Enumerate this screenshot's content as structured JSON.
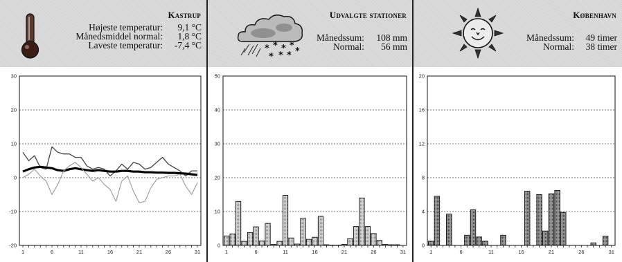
{
  "panels": [
    {
      "title": "Kastrup",
      "stats": [
        {
          "label": "Højeste temperatur:",
          "value": "9,1 °C"
        },
        {
          "label": "Månedsmiddel normal:",
          "value": "1,8 °C"
        },
        {
          "label": "Laveste temperatur:",
          "value": "-7,4 °C"
        }
      ],
      "icon": "thermometer-icon"
    },
    {
      "title": "Udvalgte stationer",
      "stats": [
        {
          "label": "Månedssum:",
          "value": "108 mm"
        },
        {
          "label": "Normal:",
          "value": "56 mm"
        }
      ],
      "icon": "rain-snow-cloud-icon"
    },
    {
      "title": "København",
      "stats": [
        {
          "label": "Månedssum:",
          "value": "49 timer"
        },
        {
          "label": "Normal:",
          "value": "38 timer"
        }
      ],
      "icon": "smiling-sun-icon"
    }
  ],
  "chart_data": [
    {
      "type": "line",
      "x": [
        1,
        2,
        3,
        4,
        5,
        6,
        7,
        8,
        9,
        10,
        11,
        12,
        13,
        14,
        15,
        16,
        17,
        18,
        19,
        20,
        21,
        22,
        23,
        24,
        25,
        26,
        27,
        28,
        29,
        30,
        31
      ],
      "xticks": [
        "1",
        "6",
        "11",
        "16",
        "21",
        "26",
        "31"
      ],
      "yticks": [
        "30",
        "20",
        "10",
        "0",
        "-10",
        "-20"
      ],
      "ylim": [
        -20,
        30
      ],
      "grid": "horizontal dashed",
      "series": [
        {
          "style": "max",
          "values": [
            7.5,
            5.0,
            6.5,
            3.0,
            2.5,
            9.1,
            7.5,
            7.0,
            7.0,
            6.0,
            6.0,
            3.5,
            2.5,
            3.0,
            2.5,
            0.5,
            2.0,
            4.0,
            2.5,
            4.5,
            4.0,
            2.5,
            3.0,
            4.5,
            6.0,
            4.0,
            3.0,
            2.0,
            0.5,
            2.0,
            2.0
          ]
        },
        {
          "style": "mean",
          "values": [
            1.8,
            2.5,
            3.0,
            3.2,
            3.0,
            2.8,
            2.2,
            2.0,
            2.5,
            2.8,
            2.5,
            2.2,
            2.0,
            2.2,
            2.0,
            1.8,
            1.8,
            2.0,
            2.0,
            1.8,
            1.8,
            1.6,
            1.6,
            1.5,
            1.5,
            1.4,
            1.4,
            1.3,
            1.2,
            1.0,
            0.8
          ]
        },
        {
          "style": "min",
          "values": [
            0.0,
            1.0,
            2.5,
            0.5,
            -1.0,
            -5.0,
            -2.0,
            2.0,
            3.5,
            4.5,
            3.0,
            1.0,
            -1.0,
            0.0,
            -2.0,
            -3.5,
            -7.0,
            -1.0,
            0.5,
            -4.0,
            -7.4,
            -7.0,
            -3.0,
            -0.5,
            0.0,
            0.5,
            0.5,
            1.0,
            -2.5,
            -5.0,
            -1.5
          ]
        }
      ]
    },
    {
      "type": "bar",
      "categories": [
        1,
        2,
        3,
        4,
        5,
        6,
        7,
        8,
        9,
        10,
        11,
        12,
        13,
        14,
        15,
        16,
        17,
        18,
        19,
        20,
        21,
        22,
        23,
        24,
        25,
        26,
        27,
        28,
        29,
        30,
        31
      ],
      "xticks": [
        "1",
        "6",
        "11",
        "16",
        "21",
        "26",
        "31"
      ],
      "yticks": [
        "50",
        "40",
        "30",
        "20",
        "10",
        "0"
      ],
      "ylim": [
        0,
        50
      ],
      "grid": "horizontal dashed",
      "values": [
        2.8,
        3.4,
        13.0,
        1.2,
        3.8,
        5.5,
        1.3,
        6.5,
        0.3,
        1.2,
        14.8,
        2.2,
        0.4,
        8.0,
        1.8,
        2.4,
        8.6,
        0.2,
        0.1,
        0.1,
        0.3,
        2.0,
        5.6,
        14.0,
        5.6,
        3.5,
        1.5,
        0.3,
        0.2,
        0.2,
        0.0
      ]
    },
    {
      "type": "bar",
      "categories": [
        1,
        2,
        3,
        4,
        5,
        6,
        7,
        8,
        9,
        10,
        11,
        12,
        13,
        14,
        15,
        16,
        17,
        18,
        19,
        20,
        21,
        22,
        23,
        24,
        25,
        26,
        27,
        28,
        29,
        30,
        31
      ],
      "xticks": [
        "1",
        "6",
        "11",
        "16",
        "21",
        "26",
        "31"
      ],
      "yticks": [
        "20",
        "16",
        "12",
        "8",
        "4",
        "0"
      ],
      "ylim": [
        0,
        20
      ],
      "grid": "horizontal dashed",
      "values": [
        0.5,
        5.8,
        0.0,
        3.7,
        0.0,
        0.0,
        1.2,
        4.2,
        1.0,
        0.5,
        0.0,
        0.0,
        1.2,
        0.0,
        0.0,
        0.0,
        6.4,
        0.0,
        6.0,
        1.7,
        6.1,
        6.5,
        3.9,
        0.0,
        0.0,
        0.0,
        0.0,
        0.3,
        0.0,
        1.1,
        0.0
      ]
    }
  ]
}
